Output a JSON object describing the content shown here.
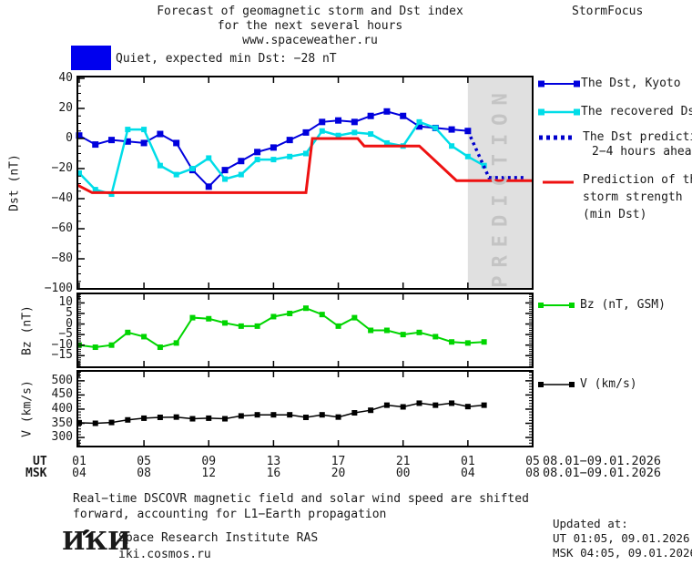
{
  "header": {
    "title_line1": "Forecast of geomagnetic storm and Dst index",
    "title_line2": "for the next several hours",
    "title_line3": "www.spaceweather.ru",
    "brand": "StormFocus"
  },
  "status": {
    "label": "Quiet, expected min Dst: −28 nT",
    "box_color": "#0000ee"
  },
  "prediction_zone": {
    "label": "PREDICTION",
    "bg": "#e0e0e0",
    "text_color": "#c4c4c4"
  },
  "legend": {
    "dst_kyoto": "The Dst, Kyoto",
    "recovered": "The recovered Dst",
    "prediction_line1": "The Dst prediction",
    "prediction_line2": "2−4 hours ahead",
    "storm_line1": "Prediction of the",
    "storm_line2": "storm strength",
    "storm_line3": "(min Dst)",
    "bz": "Bz (nT, GSM)",
    "v": "V (km/s)"
  },
  "axes": {
    "dst_label": "Dst (nT)",
    "bz_label": "Bz (nT)",
    "v_label": "V (km/s)",
    "ut_row_label": "UT",
    "msk_row_label": "MSK",
    "ut_ticks": [
      "01",
      "05",
      "09",
      "13",
      "17",
      "21",
      "01",
      "05"
    ],
    "msk_ticks": [
      "04",
      "08",
      "12",
      "16",
      "20",
      "00",
      "04",
      "08"
    ],
    "date_range_ut": "08.01−09.01.2026",
    "date_range_msk": "08.01−09.01.2026"
  },
  "caption": {
    "line1": "Real−time DSCOVR magnetic field and solar wind speed are shifted",
    "line2": "forward, accounting for L1−Earth propagation"
  },
  "footer": {
    "logo": "ИКИ",
    "org": "Space Research Institute RAS",
    "site": "iki.cosmos.ru",
    "updated_label": "Updated at:",
    "updated_ut": "UT  01:05, 09.01.2026",
    "updated_msk": "MSK 04:05, 09.01.2026"
  },
  "chart_data": [
    {
      "id": "dst",
      "type": "line",
      "ylabel": "Dst (nT)",
      "ylim": [
        -100,
        41.2
      ],
      "yticks": [
        40,
        20,
        0,
        -20,
        -40,
        -60,
        -80,
        -100
      ],
      "yminor": 5,
      "xlim": [
        0.89,
        29
      ],
      "xticks": [
        1,
        5,
        9,
        13,
        17,
        21,
        25,
        29
      ],
      "prediction_region_hours": [
        25,
        29
      ],
      "series": [
        {
          "name": "The Dst, Kyoto",
          "color": "#0000dd",
          "marker": "square",
          "marker_size": 7,
          "line_width": 2,
          "x": [
            1,
            2,
            3,
            4,
            5,
            6,
            7,
            8,
            9,
            10,
            11,
            12,
            13,
            14,
            15,
            16,
            17,
            18,
            19,
            20,
            21,
            22,
            23,
            24,
            25
          ],
          "y": [
            2,
            -4,
            -1,
            -2,
            -3,
            3,
            -3,
            -21,
            -32,
            -21,
            -15,
            -9,
            -6,
            -1,
            4,
            11,
            12,
            11,
            15,
            18,
            15,
            8,
            7,
            6,
            5
          ]
        },
        {
          "name": "The recovered Dst",
          "color": "#00dde8",
          "marker": "square",
          "marker_size": 6,
          "line_width": 2.5,
          "x": [
            1,
            2,
            3,
            4,
            5,
            6,
            7,
            8,
            9,
            10,
            11,
            12,
            13,
            14,
            15,
            16,
            17,
            18,
            19,
            20,
            21,
            22,
            23,
            24,
            25,
            26
          ],
          "y": [
            -23,
            -34,
            -37,
            6,
            6,
            -18,
            -24,
            -20,
            -13,
            -27,
            -24,
            -14,
            -14,
            -12,
            -10,
            5,
            2,
            4,
            3,
            -3,
            -5,
            11,
            7,
            -5,
            -12,
            -18
          ]
        },
        {
          "name": "The Dst prediction 2−4 hours ahead",
          "color": "#0000cc",
          "style": "dotted",
          "line_width": 3.5,
          "x": [
            25,
            26.3,
            28.5
          ],
          "y": [
            5,
            -26,
            -26
          ]
        },
        {
          "name": "Prediction of the storm strength (min Dst)",
          "color": "#ee1111",
          "line_width": 3,
          "x": [
            0.89,
            1.8,
            15,
            15.4,
            18.2,
            18.6,
            22,
            24.3,
            29
          ],
          "y": [
            -31,
            -36,
            -36,
            0,
            0,
            -5,
            -5,
            -28,
            -28
          ]
        }
      ]
    },
    {
      "id": "bz",
      "type": "line",
      "ylabel": "Bz (nT)",
      "ylim": [
        -20.5,
        14.5
      ],
      "yticks": [
        10,
        5,
        0,
        -5,
        -10,
        -15
      ],
      "yminor": 1,
      "xlim": [
        0.89,
        29
      ],
      "xticks": [
        1,
        5,
        9,
        13,
        17,
        21,
        25,
        29
      ],
      "series": [
        {
          "name": "Bz (nT, GSM)",
          "color": "#00d500",
          "marker": "square",
          "marker_size": 6,
          "line_width": 2,
          "x": [
            1,
            2,
            3,
            4,
            5,
            6,
            7,
            8,
            9,
            10,
            11,
            12,
            13,
            14,
            15,
            16,
            17,
            18,
            19,
            20,
            21,
            22,
            23,
            24,
            25,
            26
          ],
          "y": [
            -10,
            -11,
            -10,
            -4,
            -6,
            -11,
            -9,
            3,
            2.5,
            0.5,
            -1,
            -1,
            3.5,
            5,
            7.5,
            4.5,
            -1,
            3,
            -3,
            -3,
            -5,
            -4,
            -6,
            -8.5,
            -9,
            -8.5
          ]
        }
      ]
    },
    {
      "id": "v",
      "type": "line",
      "ylabel": "V (km/s)",
      "ylim": [
        268,
        535
      ],
      "yticks": [
        500,
        450,
        400,
        350,
        300
      ],
      "yminor": 10,
      "xlim": [
        0.89,
        29
      ],
      "xticks": [
        1,
        5,
        9,
        13,
        17,
        21,
        25,
        29
      ],
      "series": [
        {
          "name": "V (km/s)",
          "color": "#000000",
          "marker": "square",
          "marker_size": 6,
          "line_width": 1.5,
          "x": [
            1,
            2,
            3,
            4,
            5,
            6,
            7,
            8,
            9,
            10,
            11,
            12,
            13,
            14,
            15,
            16,
            17,
            18,
            19,
            20,
            21,
            22,
            23,
            24,
            25,
            26
          ],
          "y": [
            352,
            350,
            353,
            362,
            368,
            371,
            372,
            366,
            368,
            366,
            376,
            380,
            380,
            380,
            371,
            380,
            372,
            387,
            396,
            414,
            408,
            421,
            414,
            421,
            409,
            414
          ]
        }
      ]
    }
  ]
}
